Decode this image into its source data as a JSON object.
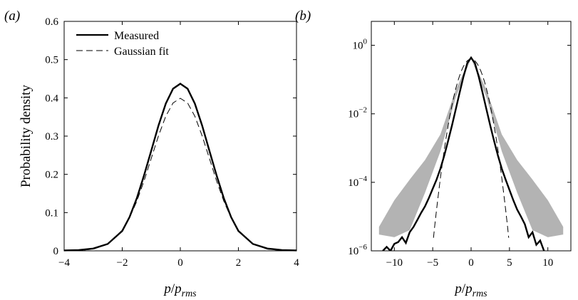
{
  "chart_data": [
    {
      "panel_label": "(a)",
      "type": "line",
      "xlabel": {
        "main": "p",
        "slash": "/",
        "sub_base": "p",
        "sub": "rms"
      },
      "ylabel": "Probability density",
      "xlim": [
        -4,
        4
      ],
      "ylim": [
        0,
        0.6
      ],
      "xticks": [
        -4,
        -2,
        0,
        2,
        4
      ],
      "xtick_labels": [
        "−4",
        "−2",
        "0",
        "2",
        "4"
      ],
      "yticks": [
        0,
        0.1,
        0.2,
        0.3,
        0.4,
        0.5,
        0.6
      ],
      "ytick_labels": [
        "0",
        "0.1",
        "0.2",
        "0.3",
        "0.4",
        "0.5",
        "0.6"
      ],
      "legend": {
        "placement": "top-left"
      },
      "series": [
        {
          "name": "Measured",
          "style": "solid-thick",
          "color": "#000000",
          "x": [
            -4,
            -3.5,
            -3,
            -2.5,
            -2,
            -1.75,
            -1.5,
            -1.25,
            -1,
            -0.75,
            -0.5,
            -0.25,
            0,
            0.25,
            0.5,
            0.75,
            1,
            1.25,
            1.5,
            1.75,
            2,
            2.5,
            3,
            3.5,
            4
          ],
          "y": [
            0.001,
            0.002,
            0.006,
            0.018,
            0.052,
            0.088,
            0.137,
            0.197,
            0.262,
            0.328,
            0.385,
            0.424,
            0.437,
            0.424,
            0.385,
            0.328,
            0.262,
            0.197,
            0.137,
            0.088,
            0.052,
            0.018,
            0.006,
            0.002,
            0.001
          ]
        },
        {
          "name": "Gaussian fit",
          "style": "dashed",
          "color": "#000000",
          "x": [
            -4,
            -3.5,
            -3,
            -2.5,
            -2,
            -1.75,
            -1.5,
            -1.25,
            -1,
            -0.75,
            -0.5,
            -0.25,
            0,
            0.25,
            0.5,
            0.75,
            1,
            1.25,
            1.5,
            1.75,
            2,
            2.5,
            3,
            3.5,
            4
          ],
          "y": [
            0.0001,
            0.0009,
            0.0044,
            0.0175,
            0.054,
            0.0863,
            0.1295,
            0.1826,
            0.242,
            0.3011,
            0.3521,
            0.3867,
            0.3989,
            0.3867,
            0.3521,
            0.3011,
            0.242,
            0.1826,
            0.1295,
            0.0863,
            0.054,
            0.0175,
            0.0044,
            0.0009,
            0.0001
          ]
        }
      ]
    },
    {
      "panel_label": "(b)",
      "type": "line",
      "xlabel": {
        "main": "p",
        "slash": "/",
        "sub_base": "p",
        "sub": "rms"
      },
      "ylabel": "",
      "yscale": "log",
      "xlim": [
        -13,
        13
      ],
      "ylim": [
        1e-06,
        5
      ],
      "xticks": [
        -10,
        -5,
        0,
        5,
        10
      ],
      "xtick_labels": [
        "−10",
        "−5",
        "0",
        "5",
        "10"
      ],
      "yticks": [
        1e-06,
        0.0001,
        0.01,
        1
      ],
      "ytick_labels": [
        {
          "base": "10",
          "exp": "−6"
        },
        {
          "base": "10",
          "exp": "−4"
        },
        {
          "base": "10",
          "exp": "−2"
        },
        {
          "base": "10",
          "exp": "0"
        }
      ],
      "series": [
        {
          "name": "",
          "style": "shaded-band",
          "color": "#b3b3b3",
          "x": [
            -12,
            -10,
            -8,
            -6,
            -4,
            -2,
            0,
            2,
            4,
            6,
            8,
            10,
            12
          ],
          "y_lower": [
            3e-06,
            2.5e-06,
            4e-06,
            5e-05,
            0.0008,
            0.03,
            0.42,
            0.03,
            0.0008,
            5e-05,
            4e-06,
            2.5e-06,
            3e-06
          ],
          "y_upper": [
            5e-06,
            3e-05,
            0.00012,
            0.00045,
            0.0025,
            0.05,
            0.48,
            0.05,
            0.0025,
            0.00045,
            0.00012,
            3e-05,
            5e-06
          ]
        },
        {
          "name": "Measured",
          "style": "solid-thick",
          "color": "#000000",
          "x": [
            -11.5,
            -11,
            -10.5,
            -10,
            -9.5,
            -9,
            -8.5,
            -8,
            -7.5,
            -7,
            -6.5,
            -6,
            -5.5,
            -5,
            -4.5,
            -4,
            -3.5,
            -3,
            -2.5,
            -2,
            -1.5,
            -1,
            -0.5,
            0,
            0.5,
            1,
            1.5,
            2,
            2.5,
            3,
            3.5,
            4,
            4.5,
            5,
            5.5,
            6,
            6.5,
            7,
            7.5,
            8,
            8.5,
            9,
            9.5
          ],
          "y": [
            1e-06,
            1.3e-06,
            1e-06,
            1.6e-06,
            1.8e-06,
            2.5e-06,
            1.7e-06,
            3.5e-06,
            5e-06,
            8e-06,
            1.3e-05,
            2e-05,
            3.5e-05,
            6.5e-05,
            0.00012,
            0.00025,
            0.0006,
            0.0016,
            0.0045,
            0.0135,
            0.041,
            0.12,
            0.3,
            0.437,
            0.3,
            0.12,
            0.041,
            0.0135,
            0.0045,
            0.0016,
            0.0006,
            0.00025,
            0.00012,
            6e-05,
            3e-05,
            1.6e-05,
            1e-05,
            6e-06,
            2.5e-06,
            3.5e-06,
            1.5e-06,
            2e-06,
            1e-06
          ]
        },
        {
          "name": "Gaussian fit",
          "style": "dashed",
          "color": "#000000",
          "x": [
            -4.9,
            -4.75,
            -4.5,
            -4.25,
            -4,
            -3.75,
            -3.5,
            -3.25,
            -3,
            -2.75,
            -2.5,
            -2.25,
            -2,
            -1.75,
            -1.5,
            -1.25,
            -1,
            -0.75,
            -0.5,
            -0.25,
            0,
            0.25,
            0.5,
            0.75,
            1,
            1.25,
            1.5,
            1.75,
            2,
            2.25,
            2.5,
            2.75,
            3,
            3.25,
            3.5,
            3.75,
            4,
            4.25,
            4.5,
            4.75,
            4.9
          ],
          "y": [
            2.4e-06,
            5.1e-06,
            1.6e-05,
            4.7e-05,
            0.000134,
            0.000353,
            0.000873,
            0.00203,
            0.00443,
            0.00909,
            0.0175,
            0.0317,
            0.054,
            0.0863,
            0.1295,
            0.1826,
            0.242,
            0.3011,
            0.3521,
            0.3867,
            0.3989,
            0.3867,
            0.3521,
            0.3011,
            0.242,
            0.1826,
            0.1295,
            0.0863,
            0.054,
            0.0317,
            0.0175,
            0.00909,
            0.00443,
            0.00203,
            0.000873,
            0.000353,
            0.000134,
            4.7e-05,
            1.6e-05,
            5.1e-06,
            2.4e-06
          ]
        }
      ]
    }
  ]
}
